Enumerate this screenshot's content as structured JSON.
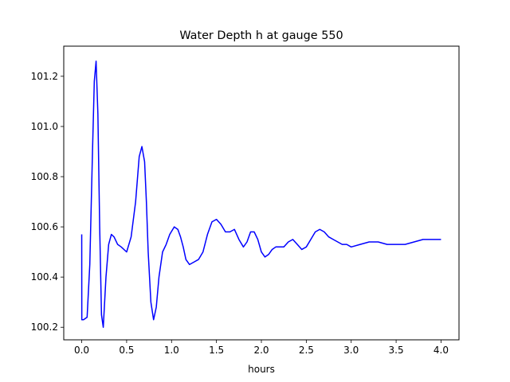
{
  "chart_data": {
    "type": "line",
    "title": "Water Depth h at gauge 550",
    "xlabel": "hours",
    "ylabel": "",
    "xlim": [
      -0.2,
      4.2
    ],
    "ylim": [
      100.15,
      101.32
    ],
    "xticks": [
      "0.0",
      "0.5",
      "1.0",
      "1.5",
      "2.0",
      "2.5",
      "3.0",
      "3.5",
      "4.0"
    ],
    "yticks": [
      "100.2",
      "100.4",
      "100.6",
      "100.8",
      "101.0",
      "101.2"
    ],
    "grid": false,
    "legend": "none",
    "series": [
      {
        "color": "#0000ff",
        "x": [
          0.0,
          0.001,
          0.02,
          0.06,
          0.09,
          0.12,
          0.14,
          0.16,
          0.18,
          0.2,
          0.22,
          0.24,
          0.27,
          0.3,
          0.33,
          0.36,
          0.4,
          0.44,
          0.5,
          0.55,
          0.6,
          0.64,
          0.67,
          0.7,
          0.72,
          0.74,
          0.77,
          0.8,
          0.83,
          0.86,
          0.9,
          0.94,
          0.98,
          1.03,
          1.07,
          1.1,
          1.13,
          1.16,
          1.2,
          1.25,
          1.3,
          1.35,
          1.4,
          1.45,
          1.5,
          1.55,
          1.6,
          1.65,
          1.7,
          1.75,
          1.8,
          1.84,
          1.88,
          1.92,
          1.96,
          2.0,
          2.04,
          2.08,
          2.12,
          2.16,
          2.2,
          2.25,
          2.3,
          2.35,
          2.4,
          2.45,
          2.5,
          2.55,
          2.6,
          2.65,
          2.7,
          2.75,
          2.8,
          2.85,
          2.9,
          2.95,
          3.0,
          3.1,
          3.2,
          3.3,
          3.4,
          3.5,
          3.6,
          3.7,
          3.8,
          3.9,
          4.0
        ],
        "y": [
          100.57,
          100.23,
          100.23,
          100.24,
          100.45,
          100.9,
          101.18,
          101.26,
          101.05,
          100.6,
          100.25,
          100.2,
          100.4,
          100.53,
          100.57,
          100.56,
          100.53,
          100.52,
          100.5,
          100.56,
          100.7,
          100.88,
          100.92,
          100.86,
          100.7,
          100.5,
          100.3,
          100.23,
          100.28,
          100.4,
          100.5,
          100.53,
          100.57,
          100.6,
          100.59,
          100.56,
          100.52,
          100.47,
          100.45,
          100.46,
          100.47,
          100.5,
          100.57,
          100.62,
          100.63,
          100.61,
          100.58,
          100.58,
          100.59,
          100.55,
          100.52,
          100.54,
          100.58,
          100.58,
          100.55,
          100.5,
          100.48,
          100.49,
          100.51,
          100.52,
          100.52,
          100.52,
          100.54,
          100.55,
          100.53,
          100.51,
          100.52,
          100.55,
          100.58,
          100.59,
          100.58,
          100.56,
          100.55,
          100.54,
          100.53,
          100.53,
          100.52,
          100.53,
          100.54,
          100.54,
          100.53,
          100.53,
          100.53,
          100.54,
          100.55,
          100.55,
          100.55
        ]
      }
    ]
  }
}
